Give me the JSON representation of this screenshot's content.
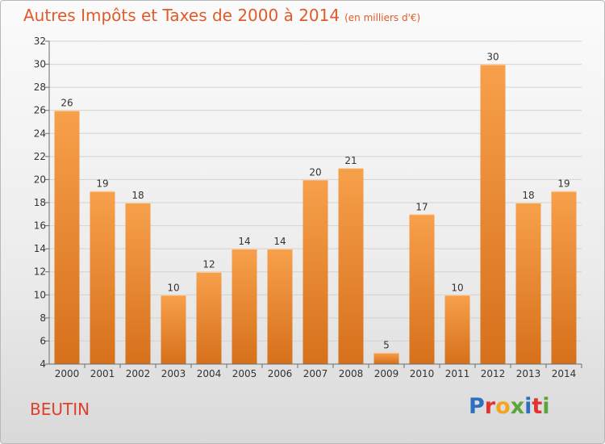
{
  "header": {
    "title": "Autres Impôts et Taxes de 2000 à 2014",
    "subtitle": "(en milliers d'€)"
  },
  "commune": "BEUTIN",
  "logo": {
    "letters": [
      "P",
      "r",
      "o",
      "x",
      "i",
      "t",
      "i"
    ]
  },
  "colors": {
    "bar_light": "#f7a04b",
    "bar_dark": "#d8721c",
    "title": "#df5b2a",
    "axis": "#6d6d6d"
  },
  "chart_data": {
    "type": "bar",
    "title": "Autres Impôts et Taxes de 2000 à 2014",
    "subtitle": "(en milliers d'€)",
    "categories": [
      "2000",
      "2001",
      "2002",
      "2003",
      "2004",
      "2005",
      "2006",
      "2007",
      "2008",
      "2009",
      "2010",
      "2011",
      "2012",
      "2013",
      "2014"
    ],
    "values": [
      26,
      19,
      18,
      10,
      12,
      14,
      14,
      20,
      21,
      5,
      17,
      10,
      30,
      18,
      19
    ],
    "ylim": [
      4,
      32
    ],
    "yticks": [
      4,
      6,
      8,
      10,
      12,
      14,
      16,
      18,
      20,
      22,
      24,
      26,
      28,
      30,
      32
    ],
    "grid": true,
    "legend": "none"
  }
}
